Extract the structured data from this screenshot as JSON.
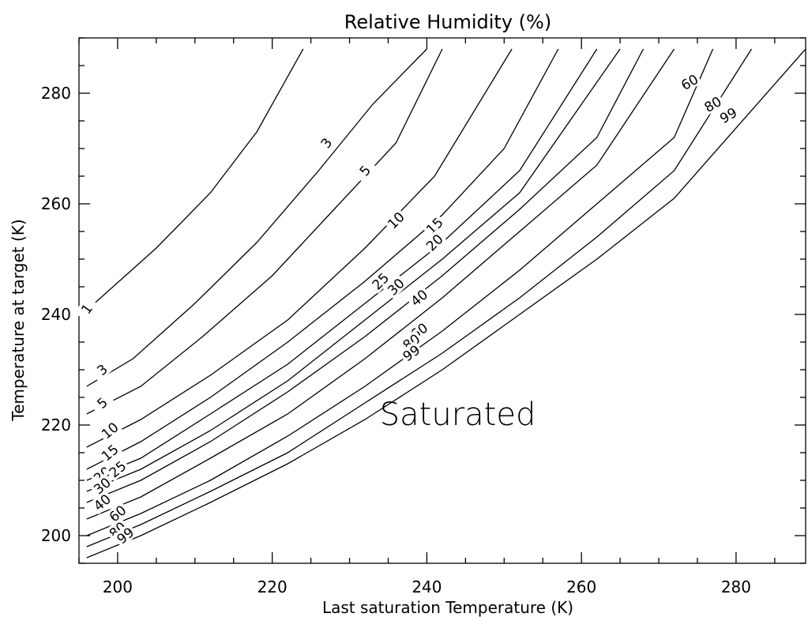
{
  "chart_data": {
    "type": "line",
    "title": "Relative Humidity (%)",
    "xlabel": "Last saturation Temperature (K)",
    "ylabel": "Temperature at target (K)",
    "xlim": [
      195,
      289
    ],
    "ylim": [
      195,
      290
    ],
    "x_ticks": [
      200,
      220,
      240,
      260,
      280
    ],
    "y_ticks": [
      200,
      220,
      240,
      260,
      280
    ],
    "x_minor_step": 5,
    "y_minor_step": 5,
    "grid": false,
    "legend": "none",
    "annotation": "Saturated",
    "annotation_position": [
      244,
      222
    ],
    "series": [
      {
        "name": "1",
        "points": [
          [
            197,
            242
          ],
          [
            205,
            252
          ],
          [
            212,
            262
          ],
          [
            218,
            273
          ],
          [
            224,
            288
          ]
        ],
        "labels": [
          {
            "text": "1",
            "x": 196,
            "y": 241,
            "angle": -55
          }
        ]
      },
      {
        "name": "3",
        "points": [
          [
            196,
            227
          ],
          [
            202,
            232
          ],
          [
            210,
            242
          ],
          [
            218,
            253
          ],
          [
            226,
            266
          ],
          [
            233,
            278
          ],
          [
            240,
            288
          ]
        ],
        "labels": [
          {
            "text": "3",
            "x": 198,
            "y": 230,
            "angle": -40
          },
          {
            "text": "3",
            "x": 227,
            "y": 271,
            "angle": -55
          }
        ]
      },
      {
        "name": "5",
        "points": [
          [
            196,
            222
          ],
          [
            203,
            227
          ],
          [
            211,
            236
          ],
          [
            220,
            247
          ],
          [
            228,
            259
          ],
          [
            236,
            271
          ],
          [
            242,
            288
          ]
        ],
        "labels": [
          {
            "text": "5",
            "x": 198,
            "y": 224,
            "angle": -40
          },
          {
            "text": "5",
            "x": 232,
            "y": 266,
            "angle": -50
          }
        ]
      },
      {
        "name": "10",
        "points": [
          [
            196,
            216
          ],
          [
            203,
            221
          ],
          [
            212,
            229
          ],
          [
            222,
            239
          ],
          [
            232,
            252
          ],
          [
            241,
            265
          ],
          [
            251,
            288
          ]
        ],
        "labels": [
          {
            "text": "10",
            "x": 199,
            "y": 219,
            "angle": -40
          },
          {
            "text": "10",
            "x": 236,
            "y": 257,
            "angle": -45
          }
        ]
      },
      {
        "name": "15",
        "points": [
          [
            196,
            212
          ],
          [
            203,
            217
          ],
          [
            212,
            225
          ],
          [
            222,
            235
          ],
          [
            232,
            246
          ],
          [
            242,
            258
          ],
          [
            250,
            270
          ],
          [
            257,
            288
          ]
        ],
        "labels": [
          {
            "text": "15",
            "x": 199,
            "y": 215,
            "angle": -40
          },
          {
            "text": "15",
            "x": 241,
            "y": 256,
            "angle": -45
          }
        ]
      },
      {
        "name": "20",
        "points": [
          [
            196,
            210
          ],
          [
            203,
            214
          ],
          [
            212,
            222
          ],
          [
            222,
            231
          ],
          [
            232,
            242
          ],
          [
            242,
            253
          ],
          [
            252,
            266
          ],
          [
            262,
            288
          ]
        ],
        "labels": [
          {
            "text": "20",
            "x": 198,
            "y": 211,
            "angle": -40
          },
          {
            "text": "20",
            "x": 241,
            "y": 253,
            "angle": -45
          }
        ]
      },
      {
        "name": "25",
        "points": [
          [
            196,
            208
          ],
          [
            203,
            212
          ],
          [
            212,
            219
          ],
          [
            222,
            228
          ],
          [
            232,
            239
          ],
          [
            242,
            250
          ],
          [
            252,
            262
          ],
          [
            265,
            288
          ]
        ],
        "labels": [
          {
            "text": "25",
            "x": 200,
            "y": 212,
            "angle": -40
          },
          {
            "text": "25",
            "x": 234,
            "y": 246,
            "angle": -45
          }
        ]
      },
      {
        "name": "30",
        "points": [
          [
            196,
            206
          ],
          [
            203,
            210
          ],
          [
            212,
            217
          ],
          [
            222,
            226
          ],
          [
            232,
            236
          ],
          [
            242,
            247
          ],
          [
            252,
            259
          ],
          [
            262,
            272
          ],
          [
            268,
            288
          ]
        ],
        "labels": [
          {
            "text": "30",
            "x": 198,
            "y": 209,
            "angle": -40
          },
          {
            "text": "30",
            "x": 236,
            "y": 245,
            "angle": -45
          }
        ]
      },
      {
        "name": "40",
        "points": [
          [
            196,
            203
          ],
          [
            203,
            207
          ],
          [
            212,
            214
          ],
          [
            222,
            222
          ],
          [
            232,
            232
          ],
          [
            242,
            243
          ],
          [
            252,
            255
          ],
          [
            262,
            267
          ],
          [
            272,
            288
          ]
        ],
        "labels": [
          {
            "text": "40",
            "x": 198,
            "y": 206,
            "angle": -40
          },
          {
            "text": "40",
            "x": 239,
            "y": 243,
            "angle": -40
          }
        ]
      },
      {
        "name": "60",
        "points": [
          [
            196,
            200
          ],
          [
            203,
            204
          ],
          [
            212,
            210
          ],
          [
            222,
            218
          ],
          [
            232,
            227
          ],
          [
            242,
            237
          ],
          [
            252,
            248
          ],
          [
            262,
            260
          ],
          [
            272,
            272
          ],
          [
            277,
            288
          ]
        ],
        "labels": [
          {
            "text": "60",
            "x": 200,
            "y": 204,
            "angle": -40
          },
          {
            "text": "60",
            "x": 239,
            "y": 237,
            "angle": -35
          },
          {
            "text": "60",
            "x": 274,
            "y": 282,
            "angle": -30
          }
        ]
      },
      {
        "name": "80",
        "points": [
          [
            196,
            198
          ],
          [
            203,
            202
          ],
          [
            212,
            208
          ],
          [
            222,
            215
          ],
          [
            232,
            224
          ],
          [
            242,
            233
          ],
          [
            252,
            243
          ],
          [
            262,
            254
          ],
          [
            272,
            266
          ],
          [
            282,
            288
          ]
        ],
        "labels": [
          {
            "text": "80",
            "x": 200,
            "y": 201,
            "angle": -40
          },
          {
            "text": "80",
            "x": 238,
            "y": 235,
            "angle": -35
          },
          {
            "text": "80",
            "x": 277,
            "y": 278,
            "angle": -30
          }
        ]
      },
      {
        "name": "99",
        "points": [
          [
            196,
            196
          ],
          [
            203,
            200
          ],
          [
            212,
            206
          ],
          [
            222,
            213
          ],
          [
            232,
            221
          ],
          [
            242,
            230
          ],
          [
            252,
            240
          ],
          [
            262,
            250
          ],
          [
            272,
            261
          ],
          [
            289,
            288
          ]
        ],
        "labels": [
          {
            "text": "99",
            "x": 201,
            "y": 200,
            "angle": -40
          },
          {
            "text": "99",
            "x": 238,
            "y": 233,
            "angle": -35
          },
          {
            "text": "99",
            "x": 279,
            "y": 276,
            "angle": -30
          }
        ]
      }
    ]
  }
}
